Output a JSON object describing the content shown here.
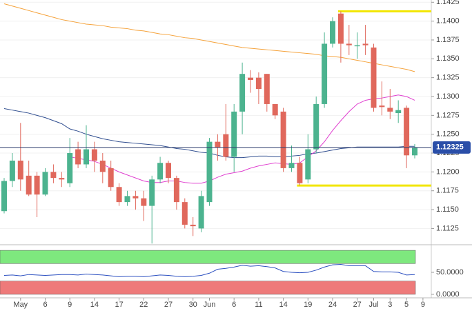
{
  "chart_data": [
    {
      "type": "candlestick",
      "categories": [
        null,
        null,
        "May",
        null,
        null,
        "6",
        null,
        null,
        "9",
        null,
        null,
        "14",
        null,
        null,
        "17",
        null,
        null,
        "22",
        null,
        null,
        "27",
        null,
        null,
        "30",
        null,
        "Jun",
        null,
        null,
        "6",
        null,
        null,
        "11",
        null,
        null,
        "14",
        null,
        null,
        "19",
        null,
        null,
        "24",
        null,
        null,
        "27",
        null,
        "Jul",
        null,
        "3",
        null,
        "5",
        null,
        "9"
      ],
      "open": [
        1.1148,
        1.1188,
        1.1215,
        1.1195,
        1.1195,
        1.117,
        1.12,
        1.1192,
        1.1185,
        1.123,
        1.121,
        1.123,
        1.1215,
        1.1205,
        1.118,
        1.116,
        1.1168,
        1.1165,
        1.1155,
        1.119,
        1.1212,
        1.1192,
        1.116,
        1.113,
        1.1125,
        1.116,
        1.124,
        1.125,
        1.122,
        1.128,
        1.1325,
        1.1325,
        1.133,
        1.129,
        1.128,
        1.1205,
        1.1212,
        1.119,
        1.123,
        1.129,
        1.137,
        1.141,
        1.137,
        1.1368,
        1.137,
        1.1365,
        1.1288,
        1.1285,
        1.1278,
        1.1285,
        1.1222,
        null
      ],
      "high": [
        1.1192,
        1.1225,
        1.1265,
        1.1215,
        1.12,
        1.1205,
        1.121,
        1.12,
        1.1245,
        1.124,
        1.1262,
        1.124,
        1.1225,
        1.1215,
        1.1185,
        1.1175,
        1.1175,
        1.1175,
        1.1195,
        1.122,
        1.1215,
        1.1195,
        1.1165,
        1.114,
        1.1175,
        1.1245,
        1.125,
        1.129,
        1.129,
        1.1345,
        1.1335,
        1.1332,
        1.133,
        1.129,
        1.1285,
        1.1235,
        1.122,
        1.125,
        1.13,
        1.1385,
        1.1405,
        1.1413,
        1.1395,
        1.1385,
        1.1395,
        1.137,
        1.132,
        1.131,
        1.1295,
        1.1288,
        1.1237,
        null
      ],
      "low": [
        1.1145,
        1.118,
        1.1175,
        1.1168,
        1.114,
        1.1168,
        1.1185,
        1.118,
        1.118,
        1.1205,
        1.1205,
        1.12,
        1.1185,
        1.1175,
        1.1155,
        1.1155,
        1.115,
        1.1135,
        1.1105,
        1.1185,
        1.1185,
        1.115,
        1.1125,
        1.1115,
        1.112,
        1.1155,
        1.1215,
        1.1215,
        1.12,
        1.125,
        1.1305,
        1.129,
        1.128,
        1.127,
        1.12,
        1.12,
        1.1182,
        1.1185,
        1.1225,
        1.1285,
        1.1365,
        1.1345,
        1.1355,
        1.135,
        1.1355,
        1.128,
        1.1275,
        1.127,
        1.1265,
        1.1205,
        1.1218,
        null
      ],
      "close": [
        1.1188,
        1.1215,
        1.119,
        1.117,
        1.117,
        1.12,
        1.1192,
        1.119,
        1.1225,
        1.121,
        1.123,
        1.1215,
        1.12,
        1.118,
        1.116,
        1.1168,
        1.1165,
        1.1155,
        1.119,
        1.1212,
        1.1192,
        1.116,
        1.113,
        1.1128,
        1.1168,
        1.124,
        1.1232,
        1.122,
        1.128,
        1.133,
        1.1322,
        1.131,
        1.129,
        1.1275,
        1.1205,
        1.1212,
        1.1185,
        1.123,
        1.129,
        1.137,
        1.14,
        1.137,
        1.1368,
        1.1368,
        1.1368,
        1.1285,
        1.1286,
        1.128,
        1.1282,
        1.1222,
        1.1232,
        null
      ],
      "up_color": "#4cb38f",
      "down_color": "#e0685c",
      "overlays": [
        {
          "color": "#f5a23a",
          "values": [
            1.1423,
            1.142,
            1.1417,
            1.1414,
            1.1411,
            1.1408,
            1.1405,
            1.1402,
            1.14,
            1.1398,
            1.1396,
            1.1395,
            1.1394,
            1.1392,
            1.1391,
            1.139,
            1.1388,
            1.1387,
            1.1385,
            1.1383,
            1.1382,
            1.138,
            1.1378,
            1.1377,
            1.1375,
            1.1373,
            1.1371,
            1.1369,
            1.1367,
            1.1365,
            1.1364,
            1.1363,
            1.1362,
            1.1361,
            1.136,
            1.1359,
            1.1358,
            1.1357,
            1.1356,
            1.1354,
            1.1353,
            1.1352,
            1.135,
            1.1348,
            1.1346,
            1.1344,
            1.1342,
            1.134,
            1.1338,
            1.1336,
            1.1333,
            null
          ]
        },
        {
          "color": "#2f4d8f",
          "values": [
            1.1284,
            1.1282,
            1.128,
            1.1278,
            1.1275,
            1.1272,
            1.1268,
            1.1264,
            1.1257,
            1.1254,
            1.125,
            1.1247,
            1.1244,
            1.1242,
            1.124,
            1.1239,
            1.1238,
            1.1237,
            1.1236,
            1.1235,
            1.1233,
            1.1231,
            1.123,
            1.1228,
            1.1226,
            1.1225,
            1.1222,
            1.122,
            1.1219,
            1.1219,
            1.122,
            1.1221,
            1.1221,
            1.122,
            1.122,
            1.1221,
            1.1222,
            1.1224,
            1.1225,
            1.1227,
            1.1229,
            1.1231,
            1.1232,
            1.1233,
            1.1233,
            1.1233,
            1.1233,
            1.1233,
            1.1233,
            1.1234,
            1.1234,
            null
          ]
        },
        {
          "color": "#e040d0",
          "values": [
            null,
            null,
            null,
            null,
            null,
            null,
            null,
            null,
            1.122,
            1.1218,
            1.1216,
            1.1214,
            1.121,
            1.1205,
            1.12,
            1.1196,
            1.1192,
            1.1188,
            1.1186,
            1.1186,
            1.1188,
            1.1188,
            1.1186,
            1.1185,
            1.1185,
            1.1188,
            1.1193,
            1.1197,
            1.1199,
            1.1201,
            1.1205,
            1.1208,
            1.121,
            1.1212,
            1.1211,
            1.121,
            1.1212,
            1.122,
            1.1228,
            1.124,
            1.1255,
            1.1268,
            1.128,
            1.129,
            1.1295,
            1.1297,
            1.1298,
            1.13,
            1.1302,
            1.13,
            1.1295,
            null
          ]
        }
      ],
      "hlines": [
        {
          "value": 1.1413,
          "start": 41,
          "color": "#f2e600"
        },
        {
          "value": 1.1182,
          "start": 36,
          "color": "#f2e600"
        }
      ],
      "last_value": 1.12325,
      "last_color": "#2a4ea8",
      "ylim": [
        1.1108,
        1.1428
      ],
      "yticks": [
        1.1425,
        {
          "value": 1.14,
          "label": "1.1400"
        },
        1.1375,
        {
          "value": 1.135,
          "label": "1.1350"
        },
        1.1325,
        {
          "value": 1.13,
          "label": "1.1300"
        },
        1.1275,
        {
          "value": 1.125,
          "label": "1.1250"
        },
        1.1225,
        {
          "value": 1.12,
          "label": "1.1200"
        },
        1.1175,
        {
          "value": 1.115,
          "label": "1.1150"
        },
        1.1125
      ],
      "grid": true
    },
    {
      "type": "line",
      "color": "#2b4fc0",
      "values": [
        43,
        44,
        42,
        45,
        44,
        43,
        44,
        45,
        45,
        44,
        46,
        45,
        44,
        42,
        40,
        41,
        41,
        40,
        42,
        44,
        43,
        41,
        40,
        41,
        43,
        48,
        57,
        59,
        62,
        66,
        64,
        65,
        63,
        60,
        52,
        50,
        49,
        50,
        55,
        62,
        67,
        68,
        65,
        65,
        65,
        52,
        51,
        51,
        50,
        44,
        45,
        null
      ],
      "bands": [
        {
          "from": 70,
          "to": 100,
          "color": "#7ee87e"
        },
        {
          "from": 0,
          "to": 30,
          "color": "#ee7a7a"
        }
      ],
      "ylim": [
        -8,
        108
      ],
      "yticks": [
        {
          "value": 50,
          "label": "50.0000"
        },
        {
          "value": 0,
          "label": "0.0000"
        }
      ]
    }
  ]
}
